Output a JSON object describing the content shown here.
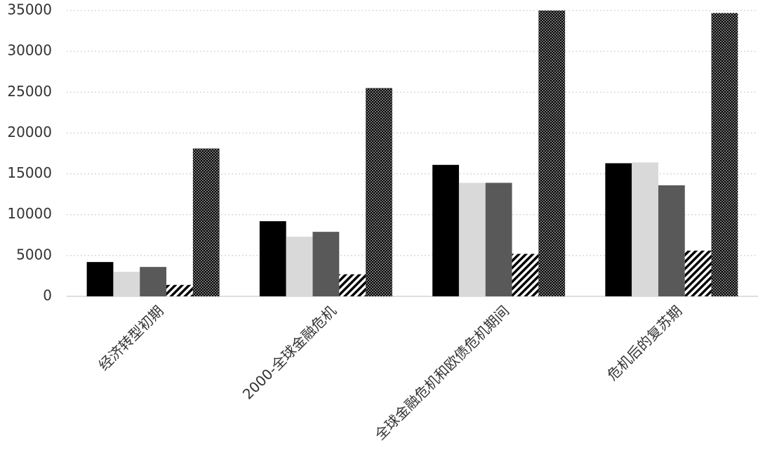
{
  "chart_data": {
    "type": "bar",
    "categories": [
      "经济转型初期",
      "2000-全球金融危机",
      "全球金融危机和欧债危机期间",
      "危机后的复苏期"
    ],
    "series": [
      {
        "color": "#000000",
        "values": [
          4200,
          9200,
          16100,
          16300
        ]
      },
      {
        "color": "#d9d9d9",
        "values": [
          3000,
          7300,
          13900,
          16400
        ]
      },
      {
        "color": "#595959",
        "values": [
          3600,
          7900,
          13900,
          13600
        ]
      },
      {
        "color": "#000000",
        "pattern": "hatch",
        "values": [
          1400,
          2700,
          5200,
          5600
        ]
      },
      {
        "color": "#000000",
        "pattern": "dots",
        "values": [
          18100,
          25500,
          35000,
          34700
        ]
      }
    ],
    "ylim": [
      0,
      35000
    ],
    "yticks": [
      0,
      5000,
      10000,
      15000,
      20000,
      25000,
      30000,
      35000
    ],
    "grid": true
  }
}
